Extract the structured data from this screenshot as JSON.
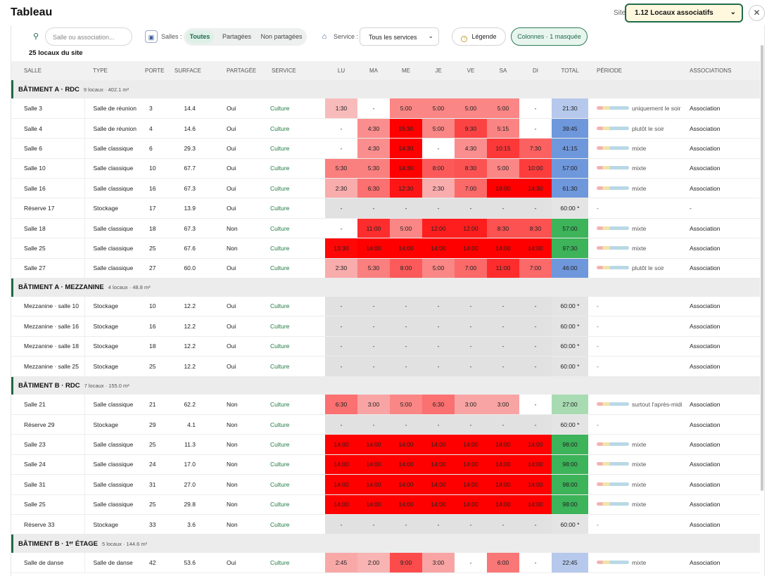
{
  "header": {
    "title": "Tableau",
    "site_label": "Site",
    "site_value": "1.12 Locaux associatifs",
    "close_icon": "close-icon"
  },
  "filters": {
    "search_placeholder": "Salle ou association...",
    "salles_label": "Salles :",
    "segments": [
      "Toutes",
      "Partagées",
      "Non partagées"
    ],
    "active_segment": "Toutes",
    "service_label": "Service :",
    "service_value": "Tous les services",
    "legend_label": "Légende",
    "columns_label": "Colonnes · 1 masquée"
  },
  "summary": "25 locaux du site",
  "columns": [
    "SALLE",
    "TYPE",
    "PORTE",
    "SURFACE",
    "PARTAGÉE",
    "SERVICE",
    "LU",
    "MA",
    "ME",
    "JE",
    "VE",
    "SA",
    "DI",
    "TOTAL",
    "PÉRIODE",
    "ASSOCIATIONS"
  ],
  "colors": {
    "accent": "#1f6b4a",
    "service_text": "#1f7a3e",
    "empty_cell": "#e1e1e1",
    "total_blue_light": "#b6c9ec",
    "total_blue": "#6f98dc",
    "total_green_light": "#a9dbb2",
    "total_green": "#3db35a",
    "total_na": "#e4e4e4"
  },
  "groups": [
    {
      "name": "BÂTIMENT A · RDC",
      "meta": "9 locaux · 402.1 m²",
      "rows": [
        {
          "name": "Salle 3",
          "type": "Salle de réunion",
          "door": "3",
          "area": "14.4",
          "shared": "Oui",
          "service": "Culture",
          "days": [
            "1:30",
            "-",
            "5:00",
            "5:00",
            "5:00",
            "5:00",
            "-"
          ],
          "total": "21:30",
          "total_tone": "blue-light",
          "period": "uniquement le soir",
          "assoc": "Association"
        },
        {
          "name": "Salle 4",
          "type": "Salle de réunion",
          "door": "4",
          "area": "14.6",
          "shared": "Oui",
          "service": "Culture",
          "days": [
            "-",
            "4:30",
            "15:30",
            "5:00",
            "9:30",
            "5:15",
            "-"
          ],
          "total": "39:45",
          "total_tone": "blue",
          "period": "plutôt le soir",
          "assoc": "Association"
        },
        {
          "name": "Salle 6",
          "type": "Salle classique",
          "door": "6",
          "area": "29.3",
          "shared": "Oui",
          "service": "Culture",
          "days": [
            "-",
            "4:30",
            "14:30",
            "-",
            "4:30",
            "10:15",
            "7:30"
          ],
          "total": "41:15",
          "total_tone": "blue",
          "period": "mixte",
          "assoc": "Association"
        },
        {
          "name": "Salle 10",
          "type": "Salle classique",
          "door": "10",
          "area": "67.7",
          "shared": "Oui",
          "service": "Culture",
          "days": [
            "5:30",
            "5:30",
            "14:30",
            "8:00",
            "8:30",
            "5:00",
            "10:00"
          ],
          "total": "57:00",
          "total_tone": "blue",
          "period": "mixte",
          "assoc": "Association"
        },
        {
          "name": "Salle 16",
          "type": "Salle classique",
          "door": "16",
          "area": "67.3",
          "shared": "Oui",
          "service": "Culture",
          "days": [
            "2:30",
            "6:30",
            "12:30",
            "2:30",
            "7:00",
            "16:00",
            "14:30"
          ],
          "total": "61:30",
          "total_tone": "blue",
          "period": "mixte",
          "assoc": "Association"
        },
        {
          "name": "Réserve 17",
          "type": "Stockage",
          "door": "17",
          "area": "13.9",
          "shared": "Oui",
          "service": "Culture",
          "days": [
            "-",
            "-",
            "-",
            "-",
            "-",
            "-",
            "-"
          ],
          "total": "60:00 *",
          "total_tone": "na",
          "period": "-",
          "assoc": "-"
        },
        {
          "name": "Salle 18",
          "type": "Salle classique",
          "door": "18",
          "area": "67.3",
          "shared": "Non",
          "service": "Culture",
          "days": [
            "-",
            "11:00",
            "5:00",
            "12:00",
            "12:00",
            "8:30",
            "8:30"
          ],
          "total": "57:00",
          "total_tone": "green",
          "period": "mixte",
          "assoc": "Association"
        },
        {
          "name": "Salle 25",
          "type": "Salle classique",
          "door": "25",
          "area": "67.6",
          "shared": "Non",
          "service": "Culture",
          "days": [
            "13:30",
            "14:00",
            "14:00",
            "14:00",
            "14:00",
            "14:00",
            "14:00"
          ],
          "total": "97:30",
          "total_tone": "green",
          "period": "mixte",
          "assoc": "Association"
        },
        {
          "name": "Salle 27",
          "type": "Salle classique",
          "door": "27",
          "area": "60.0",
          "shared": "Oui",
          "service": "Culture",
          "days": [
            "2:30",
            "5:30",
            "8:00",
            "5:00",
            "7:00",
            "11:00",
            "7:00"
          ],
          "total": "46:00",
          "total_tone": "blue",
          "period": "plutôt le soir",
          "assoc": "Association"
        }
      ]
    },
    {
      "name": "BÂTIMENT A · MEZZANINE",
      "meta": "4 locaux · 48.8 m²",
      "rows": [
        {
          "name": "Mezzanine · salle 10",
          "type": "Stockage",
          "door": "10",
          "area": "12.2",
          "shared": "Oui",
          "service": "Culture",
          "days": [
            "-",
            "-",
            "-",
            "-",
            "-",
            "-",
            "-"
          ],
          "total": "60:00 *",
          "total_tone": "na",
          "period": "-",
          "assoc": "Association"
        },
        {
          "name": "Mezzanine · salle 16",
          "type": "Stockage",
          "door": "16",
          "area": "12.2",
          "shared": "Oui",
          "service": "Culture",
          "days": [
            "-",
            "-",
            "-",
            "-",
            "-",
            "-",
            "-"
          ],
          "total": "60:00 *",
          "total_tone": "na",
          "period": "-",
          "assoc": "Association"
        },
        {
          "name": "Mezzanine · salle 18",
          "type": "Stockage",
          "door": "18",
          "area": "12.2",
          "shared": "Oui",
          "service": "Culture",
          "days": [
            "-",
            "-",
            "-",
            "-",
            "-",
            "-",
            "-"
          ],
          "total": "60:00 *",
          "total_tone": "na",
          "period": "-",
          "assoc": "Association"
        },
        {
          "name": "Mezzanine · salle 25",
          "type": "Stockage",
          "door": "25",
          "area": "12.2",
          "shared": "Oui",
          "service": "Culture",
          "days": [
            "-",
            "-",
            "-",
            "-",
            "-",
            "-",
            "-"
          ],
          "total": "60:00 *",
          "total_tone": "na",
          "period": "-",
          "assoc": "Association"
        }
      ]
    },
    {
      "name": "BÂTIMENT B · RDC",
      "meta": "7 locaux · 155.0 m²",
      "rows": [
        {
          "name": "Salle 21",
          "type": "Salle classique",
          "door": "21",
          "area": "62.2",
          "shared": "Non",
          "service": "Culture",
          "days": [
            "6:30",
            "3:00",
            "5:00",
            "6:30",
            "3:00",
            "3:00",
            "-"
          ],
          "total": "27:00",
          "total_tone": "green-light",
          "period": "surtout l'après-midi",
          "assoc": "Association"
        },
        {
          "name": "Réserve 29",
          "type": "Stockage",
          "door": "29",
          "area": "4.1",
          "shared": "Non",
          "service": "Culture",
          "days": [
            "-",
            "-",
            "-",
            "-",
            "-",
            "-",
            "-"
          ],
          "total": "60:00 *",
          "total_tone": "na",
          "period": "-",
          "assoc": "Association"
        },
        {
          "name": "Salle 23",
          "type": "Salle classique",
          "door": "25",
          "area": "11.3",
          "shared": "Non",
          "service": "Culture",
          "days": [
            "14:00",
            "14:00",
            "14:00",
            "14:00",
            "14:00",
            "14:00",
            "14:00"
          ],
          "total": "98:00",
          "total_tone": "green",
          "period": "mixte",
          "assoc": "Association"
        },
        {
          "name": "Salle 24",
          "type": "Salle classique",
          "door": "24",
          "area": "17.0",
          "shared": "Non",
          "service": "Culture",
          "days": [
            "14:00",
            "14:00",
            "14:00",
            "14:00",
            "14:00",
            "14:00",
            "14:00"
          ],
          "total": "98:00",
          "total_tone": "green",
          "period": "mixte",
          "assoc": "Association"
        },
        {
          "name": "Salle 31",
          "type": "Salle classique",
          "door": "31",
          "area": "27.0",
          "shared": "Non",
          "service": "Culture",
          "days": [
            "14:00",
            "14:00",
            "14:00",
            "14:00",
            "14:00",
            "14:00",
            "14:00"
          ],
          "total": "98:00",
          "total_tone": "green",
          "period": "mixte",
          "assoc": "Association"
        },
        {
          "name": "Salle 25",
          "type": "Salle classique",
          "door": "25",
          "area": "29.8",
          "shared": "Non",
          "service": "Culture",
          "days": [
            "14:00",
            "14:00",
            "14:00",
            "14:00",
            "14:00",
            "14:00",
            "14:00"
          ],
          "total": "98:00",
          "total_tone": "green",
          "period": "mixte",
          "assoc": "Association"
        },
        {
          "name": "Réserve 33",
          "type": "Stockage",
          "door": "33",
          "area": "3.6",
          "shared": "Non",
          "service": "Culture",
          "days": [
            "-",
            "-",
            "-",
            "-",
            "-",
            "-",
            "-"
          ],
          "total": "60:00 *",
          "total_tone": "na",
          "period": "-",
          "assoc": "Association"
        }
      ]
    },
    {
      "name": "BÂTIMENT B · 1ᵉʳ ÉTAGE",
      "meta": "5 locaux · 144.6 m²",
      "rows": [
        {
          "name": "Salle de danse",
          "type": "Salle de danse",
          "door": "42",
          "area": "53.6",
          "shared": "Oui",
          "service": "Culture",
          "days": [
            "2:45",
            "2:00",
            "9:00",
            "3:00",
            "-",
            "6:00",
            "-"
          ],
          "total": "22:45",
          "total_tone": "blue-light",
          "period": "mixte",
          "assoc": "Association"
        }
      ]
    }
  ]
}
